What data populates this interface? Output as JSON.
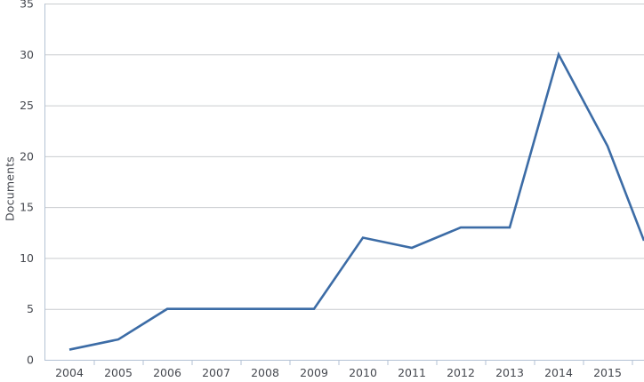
{
  "chart_data": {
    "type": "line",
    "title": "",
    "xlabel": "",
    "ylabel": "Documents",
    "categories": [
      "2004",
      "2005",
      "2006",
      "2007",
      "2008",
      "2009",
      "2010",
      "2011",
      "2012",
      "2013",
      "2014",
      "2015"
    ],
    "series": [
      {
        "name": "Documents",
        "values": [
          1,
          2,
          5,
          5,
          5,
          5,
          12,
          11,
          13,
          13,
          30,
          21
        ]
      }
    ],
    "clipped_extension": {
      "description": "line continues beyond 2015 and is clipped at the right image edge",
      "value_at_right_edge": 11.7
    },
    "ylim": [
      0,
      35
    ],
    "yticks": [
      0,
      5,
      10,
      15,
      20,
      25,
      30,
      35
    ],
    "grid": "horizontal gridlines on",
    "legend": "none",
    "colors": {
      "line": "#3c6ca6",
      "grid": "#c9cccf",
      "axis": "#b3c2d4",
      "tick_label": "#45484f"
    }
  }
}
